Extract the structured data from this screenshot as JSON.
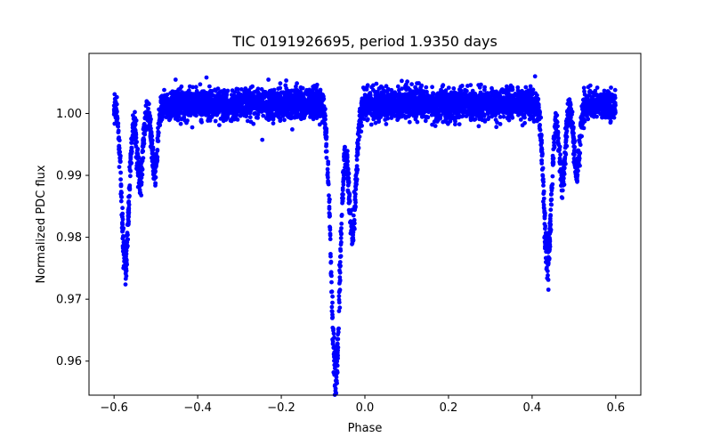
{
  "chart_data": {
    "type": "scatter",
    "title": "TIC 0191926695, period 1.9350 days",
    "xlabel": "Phase",
    "ylabel": "Normalized PDC flux",
    "xlim": [
      -0.66,
      0.66
    ],
    "ylim": [
      0.9545,
      1.0097
    ],
    "xticks": [
      -0.6,
      -0.4,
      -0.2,
      0.0,
      0.2,
      0.4,
      0.6
    ],
    "xtick_labels": [
      "−0.6",
      "−0.4",
      "−0.2",
      "0.0",
      "0.2",
      "0.4",
      "0.6"
    ],
    "yticks": [
      0.96,
      0.97,
      0.98,
      0.99,
      1.0
    ],
    "ytick_labels": [
      "0.96",
      "0.97",
      "0.98",
      "0.99",
      "1.00"
    ],
    "grid": false,
    "series": [
      {
        "name": "PDC flux",
        "color": "#0000ff",
        "baseline": 1.0015,
        "scatter": 0.0012,
        "x_range": [
          -0.6,
          0.6
        ],
        "dips": [
          {
            "center": -0.07,
            "depth": 0.0435,
            "width": 0.011
          },
          {
            "center": -0.03,
            "depth": 0.0205,
            "width": 0.009
          },
          {
            "center": -0.573,
            "depth": 0.0255,
            "width": 0.009
          },
          {
            "center": -0.538,
            "depth": 0.0125,
            "width": 0.007
          },
          {
            "center": -0.503,
            "depth": 0.011,
            "width": 0.007
          },
          {
            "center": 0.437,
            "depth": 0.0255,
            "width": 0.009
          },
          {
            "center": 0.472,
            "depth": 0.0125,
            "width": 0.007
          },
          {
            "center": 0.507,
            "depth": 0.011,
            "width": 0.007
          }
        ]
      }
    ]
  }
}
